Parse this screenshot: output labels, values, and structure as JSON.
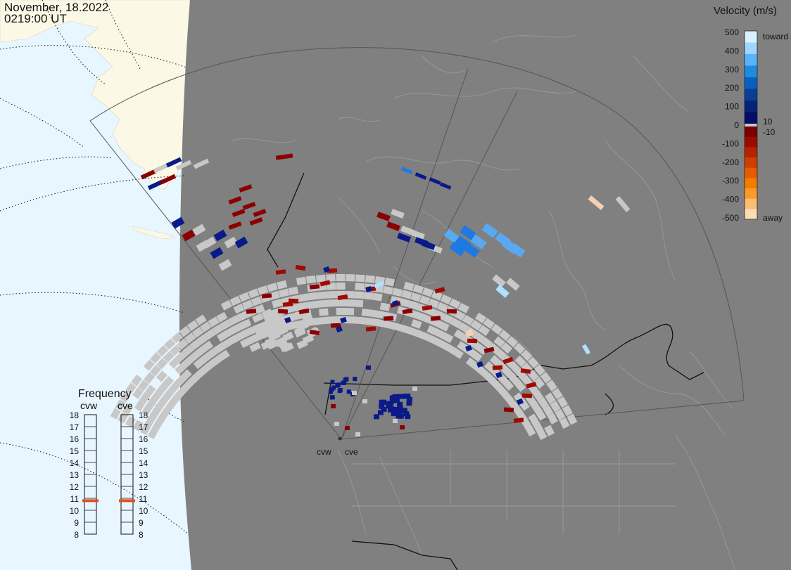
{
  "header": {
    "date": "November, 18.2022",
    "time": "0219:00 UT"
  },
  "colorbar": {
    "title": "Velocity (m/s)",
    "ticks": [
      "500",
      "400",
      "300",
      "200",
      "100",
      "0",
      "-100",
      "-200",
      "-300",
      "-400",
      "-500"
    ],
    "label_toward": "toward",
    "label_away": "away",
    "label_pos10": "10",
    "label_neg10": "-10",
    "toward_colors": [
      "#d8f0ff",
      "#9fd6ff",
      "#58b4f8",
      "#1e8ae0",
      "#0a5fbf",
      "#0a3c98",
      "#06237a",
      "#020d66"
    ],
    "away_colors": [
      "#7a0000",
      "#9a0c00",
      "#b52200",
      "#cf3d00",
      "#e65a00",
      "#f57a00",
      "#fa9a2a",
      "#fbbd70",
      "#fbdcb4"
    ]
  },
  "frequency": {
    "title": "Frequency",
    "radars": [
      {
        "name": "cvw",
        "value": 10.8
      },
      {
        "name": "cve",
        "value": 10.8
      }
    ],
    "scale": [
      "18",
      "17",
      "16",
      "15",
      "14",
      "13",
      "12",
      "11",
      "10",
      "9",
      "8"
    ],
    "marker_color": "#e05020"
  },
  "map": {
    "radar_labels": [
      "cvw",
      "cve"
    ],
    "land_color": "#808080",
    "ocean_color": "#e8f6ff",
    "ice_color": "#fbf8e6",
    "ground_scatter_color": "#c8c8c8"
  }
}
